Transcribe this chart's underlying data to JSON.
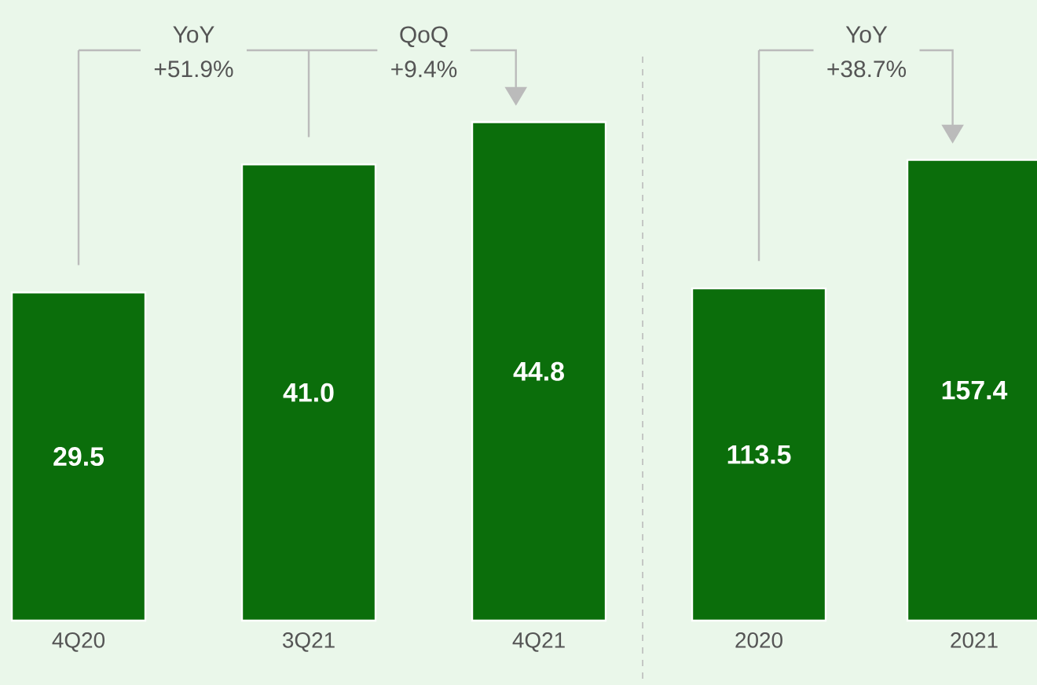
{
  "chart_data": [
    {
      "type": "bar",
      "categories": [
        "4Q20",
        "3Q21",
        "4Q21"
      ],
      "values": [
        29.5,
        41.0,
        44.8
      ],
      "value_labels": [
        "29.5",
        "41.0",
        "44.8"
      ],
      "color": "#0b6e0b",
      "annotations": [
        "YoY",
        "+51.9%",
        "QoQ",
        "+9.4%"
      ]
    },
    {
      "type": "bar",
      "categories": [
        "2020",
        "2021"
      ],
      "values": [
        113.5,
        157.4
      ],
      "value_labels": [
        "113.5",
        "157.4"
      ],
      "color": "#0b6e0b",
      "annotations": [
        "YoY",
        "+38.7%"
      ]
    }
  ]
}
